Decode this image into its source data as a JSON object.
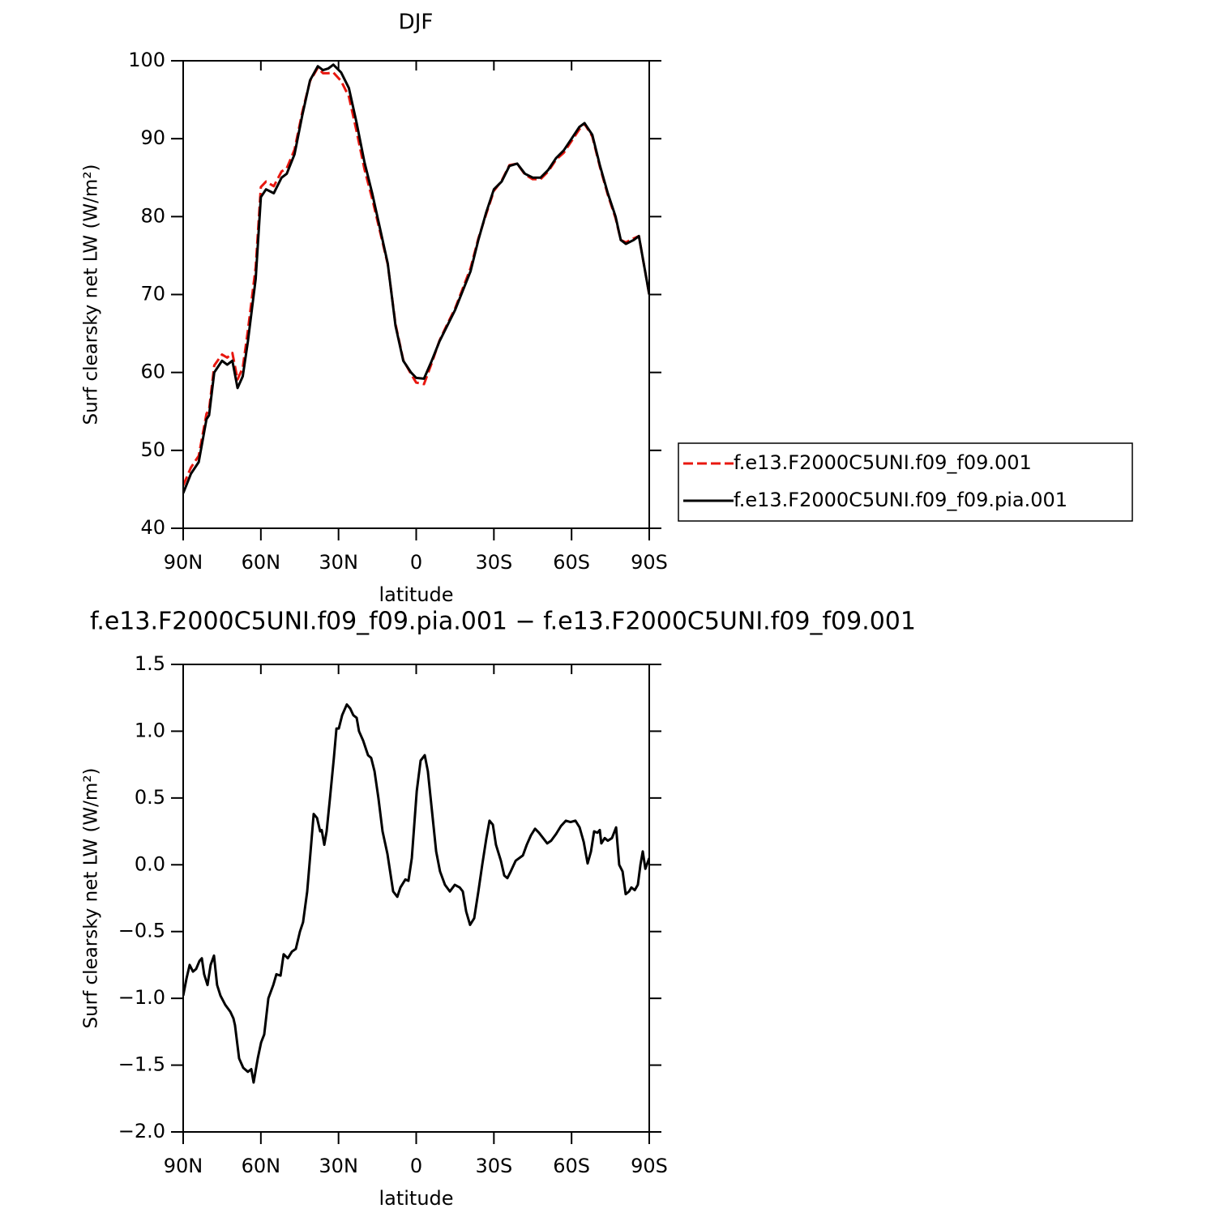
{
  "chart_data": [
    {
      "type": "line",
      "title": "DJF",
      "x_label": "latitude",
      "y_label": "Surf clearsky net LW (W/m²)",
      "xlim": [
        90,
        -90
      ],
      "ylim": [
        40,
        100
      ],
      "xticks": [
        {
          "value": 90,
          "label": "90N"
        },
        {
          "value": 60,
          "label": "60N"
        },
        {
          "value": 30,
          "label": "30N"
        },
        0,
        {
          "value": -30,
          "label": "30S"
        },
        {
          "value": -60,
          "label": "60S"
        },
        {
          "value": -90,
          "label": "90S"
        }
      ],
      "yticks": [
        40,
        50,
        60,
        70,
        80,
        90,
        100
      ],
      "legend": "right",
      "x": [
        90,
        87,
        84,
        81,
        80,
        78,
        75,
        73,
        71,
        69,
        67,
        65,
        62,
        60,
        58,
        55,
        52,
        50,
        47,
        44,
        41,
        38,
        36,
        34,
        32,
        29,
        26,
        23,
        20,
        17,
        14,
        11,
        8,
        5,
        2,
        0,
        -3,
        -6,
        -9,
        -12,
        -15,
        -18,
        -21,
        -24,
        -27,
        -30,
        -33,
        -36,
        -39,
        -42,
        -45,
        -48,
        -51,
        -54,
        -57,
        -60,
        -63,
        -65,
        -68,
        -71,
        -74,
        -77,
        -79,
        -81,
        -84,
        -86,
        -90
      ],
      "series": [
        {
          "name": "f.e13.F2000C5UNI.f09_f09.001",
          "color": "#e8170f",
          "line_style": "dashed",
          "values": [
            45.5,
            47.8,
            49.3,
            54.7,
            55.2,
            60.9,
            62.3,
            61.9,
            62.5,
            59.1,
            60.6,
            65.4,
            73.5,
            83.8,
            84.5,
            83.9,
            85.8,
            86.2,
            88.6,
            93.4,
            97.4,
            99.1,
            98.4,
            98.4,
            98.5,
            97.4,
            95.4,
            90.9,
            86.1,
            82.3,
            78.1,
            73.9,
            66.2,
            61.6,
            59.8,
            58.7,
            58.5,
            61.2,
            64.1,
            66.2,
            68.2,
            70.8,
            73.4,
            77.2,
            80.3,
            83.3,
            84.6,
            86.6,
            86.8,
            85.4,
            84.8,
            84.8,
            85.8,
            87.3,
            88.2,
            89.7,
            91.2,
            91.9,
            90.3,
            86.3,
            82.8,
            79.8,
            77,
            76.7,
            77.2,
            77.5,
            70
          ]
        },
        {
          "name": "f.e13.F2000C5UNI.f09_f09.pia.001",
          "color": "#000000",
          "line_style": "solid",
          "values": [
            44.5,
            47,
            48.5,
            54,
            54.5,
            60,
            61.5,
            61,
            61.5,
            58,
            59.5,
            64,
            72,
            82.5,
            83.5,
            83,
            85,
            85.5,
            88,
            93,
            97.5,
            99.3,
            98.8,
            99,
            99.5,
            98.5,
            96.5,
            92,
            87,
            83,
            78.5,
            74,
            66,
            61.5,
            60,
            59.3,
            59.2,
            61.5,
            64,
            66,
            68,
            70.5,
            73,
            77,
            80.5,
            83.5,
            84.5,
            86.5,
            86.8,
            85.5,
            85,
            85,
            86,
            87.5,
            88.5,
            90,
            91.5,
            92,
            90.5,
            86.5,
            83,
            80,
            77,
            76.5,
            77,
            77.5,
            70
          ]
        }
      ]
    },
    {
      "type": "line",
      "title": "f.e13.F2000C5UNI.f09_f09.pia.001 − f.e13.F2000C5UNI.f09_f09.001",
      "x_label": "latitude",
      "y_label": "Surf clearsky net LW (W/m²)",
      "xlim": [
        90,
        -90
      ],
      "ylim": [
        -2,
        1.5
      ],
      "xticks": [
        {
          "value": 90,
          "label": "90N"
        },
        {
          "value": 60,
          "label": "60N"
        },
        {
          "value": 30,
          "label": "30N"
        },
        0,
        {
          "value": -30,
          "label": "30S"
        },
        {
          "value": -60,
          "label": "60S"
        },
        {
          "value": -90,
          "label": "90S"
        }
      ],
      "yticks": [
        {
          "value": -2,
          "label": "−2.0"
        },
        {
          "value": -1.5,
          "label": "−1.5"
        },
        {
          "value": -1,
          "label": "−1.0"
        },
        {
          "value": -0.5,
          "label": "−0.5"
        },
        {
          "value": 0,
          "label": "0.0"
        },
        0.5,
        {
          "value": 1,
          "label": "1.0"
        },
        1.5
      ],
      "x": [
        90,
        88.7,
        87.5,
        86.2,
        85,
        83.7,
        82.8,
        81.9,
        80.6,
        79.4,
        78.1,
        76.9,
        75.6,
        73.7,
        71.8,
        70.6,
        70,
        68.4,
        66.8,
        65,
        63.7,
        62.8,
        61.2,
        59.9,
        58.7,
        57.1,
        55.2,
        54,
        52.4,
        51.2,
        49.6,
        48,
        46.5,
        44.9,
        43.7,
        42.1,
        40.8,
        39.6,
        38.3,
        37.1,
        36.5,
        35.5,
        34.6,
        33.3,
        31.8,
        30.8,
        29.9,
        28.6,
        26.8,
        25.5,
        24.3,
        23,
        22.1,
        20.5,
        18.6,
        17.4,
        16.1,
        14.6,
        13,
        11.1,
        8.9,
        7.3,
        6.1,
        4.2,
        3,
        1.7,
        -0.2,
        -1.7,
        -3.3,
        -4.5,
        -6.1,
        -7.7,
        -9.2,
        -11.1,
        -13,
        -14.9,
        -16.8,
        -18,
        -19.3,
        -20.8,
        -22.4,
        -24,
        -25.5,
        -27.1,
        -28.3,
        -29.6,
        -30.8,
        -32.7,
        -34,
        -35.2,
        -36.5,
        -38.4,
        -41.2,
        -42.7,
        -44.3,
        -45.9,
        -47.4,
        -49,
        -50.6,
        -52.1,
        -54,
        -55.9,
        -57.8,
        -59.6,
        -61.5,
        -63.1,
        -64.7,
        -66.2,
        -67.5,
        -68.7,
        -70,
        -70.9,
        -71.5,
        -72.8,
        -74,
        -75.6,
        -77.2,
        -78.4,
        -79.7,
        -80.9,
        -82.2,
        -83.1,
        -84.4,
        -85.6,
        -86.6,
        -87.5,
        -88.5,
        -90
      ],
      "series": [
        {
          "name": null,
          "color": "#000000",
          "line_style": "solid",
          "values": [
            -0.98,
            -0.85,
            -0.75,
            -0.8,
            -0.78,
            -0.72,
            -0.7,
            -0.82,
            -0.9,
            -0.75,
            -0.68,
            -0.9,
            -0.98,
            -1.05,
            -1.1,
            -1.15,
            -1.2,
            -1.45,
            -1.52,
            -1.55,
            -1.53,
            -1.63,
            -1.45,
            -1.33,
            -1.27,
            -1.0,
            -0.9,
            -0.82,
            -0.83,
            -0.67,
            -0.7,
            -0.65,
            -0.63,
            -0.5,
            -0.43,
            -0.2,
            0.1,
            0.38,
            0.35,
            0.25,
            0.26,
            0.15,
            0.25,
            0.5,
            0.8,
            1.02,
            1.02,
            1.12,
            1.2,
            1.17,
            1.12,
            1.1,
            1.0,
            0.93,
            0.82,
            0.8,
            0.7,
            0.5,
            0.25,
            0.08,
            -0.2,
            -0.24,
            -0.17,
            -0.11,
            -0.12,
            0.05,
            0.55,
            0.78,
            0.82,
            0.7,
            0.4,
            0.1,
            -0.05,
            -0.15,
            -0.2,
            -0.15,
            -0.17,
            -0.2,
            -0.35,
            -0.45,
            -0.4,
            -0.2,
            0.0,
            0.2,
            0.33,
            0.3,
            0.15,
            0.03,
            -0.08,
            -0.1,
            -0.05,
            0.03,
            0.07,
            0.15,
            0.22,
            0.27,
            0.24,
            0.2,
            0.16,
            0.18,
            0.23,
            0.29,
            0.33,
            0.32,
            0.33,
            0.28,
            0.17,
            0.01,
            0.1,
            0.25,
            0.24,
            0.26,
            0.16,
            0.2,
            0.18,
            0.2,
            0.28,
            0.0,
            -0.05,
            -0.22,
            -0.2,
            -0.17,
            -0.19,
            -0.15,
            0.0,
            0.1,
            -0.03,
            0.05
          ]
        }
      ]
    }
  ]
}
